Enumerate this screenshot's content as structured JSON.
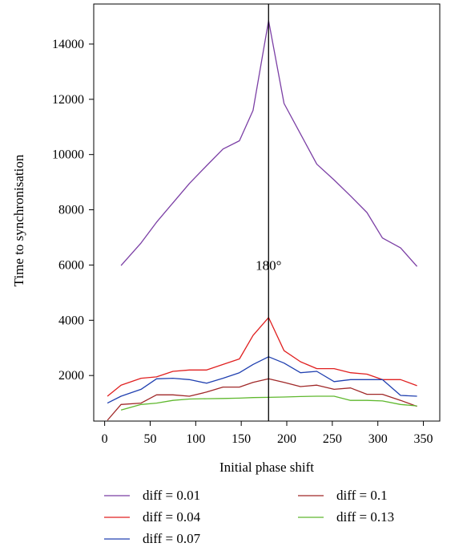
{
  "chart_data": {
    "type": "line",
    "title": "",
    "xlabel": "Initial phase shift",
    "ylabel": "Time to synchronisation",
    "xlim": [
      -12,
      368
    ],
    "ylim": [
      350,
      15450
    ],
    "xticks": [
      0,
      50,
      100,
      150,
      200,
      250,
      300,
      350
    ],
    "yticks": [
      2000,
      4000,
      6000,
      8000,
      10000,
      12000,
      14000
    ],
    "grid": false,
    "legend_position": "bottom",
    "annotations": [
      {
        "text": "180°",
        "x": 180,
        "y": 6000,
        "type": "vertical-line"
      }
    ],
    "x": [
      3,
      18,
      40,
      57,
      75,
      93,
      112,
      130,
      148,
      163,
      180,
      197,
      215,
      233,
      252,
      270,
      288,
      305,
      325,
      343
    ],
    "series": [
      {
        "name": "diff = 0.01",
        "color": "#7b3fa5",
        "values": [
          null,
          5980,
          6800,
          7550,
          8250,
          8950,
          9600,
          10200,
          10500,
          11600,
          14850,
          11850,
          10750,
          9650,
          9080,
          8500,
          7900,
          6980,
          6620,
          5950
        ]
      },
      {
        "name": "diff = 0.04",
        "color": "#e02020",
        "values": [
          1250,
          1650,
          1900,
          1950,
          2150,
          2200,
          2200,
          2400,
          2600,
          3450,
          4100,
          2900,
          2500,
          2250,
          2250,
          2100,
          2050,
          1850,
          1850,
          1630
        ]
      },
      {
        "name": "diff = 0.07",
        "color": "#2040b0",
        "values": [
          1000,
          1250,
          1500,
          1880,
          1900,
          1850,
          1720,
          1900,
          2100,
          2400,
          2680,
          2450,
          2100,
          2150,
          1780,
          1850,
          1850,
          1850,
          1280,
          1250
        ]
      },
      {
        "name": "diff = 0.1",
        "color": "#a02828",
        "values": [
          380,
          950,
          1000,
          1300,
          1300,
          1250,
          1400,
          1580,
          1580,
          1750,
          1880,
          1750,
          1600,
          1650,
          1500,
          1550,
          1320,
          1320,
          1100,
          880
        ]
      },
      {
        "name": "diff = 0.13",
        "color": "#5fb82e",
        "values": [
          null,
          750,
          950,
          1000,
          1100,
          1150,
          1160,
          1170,
          1180,
          1200,
          1210,
          1220,
          1240,
          1250,
          1250,
          1100,
          1100,
          1080,
          950,
          900
        ]
      }
    ]
  }
}
